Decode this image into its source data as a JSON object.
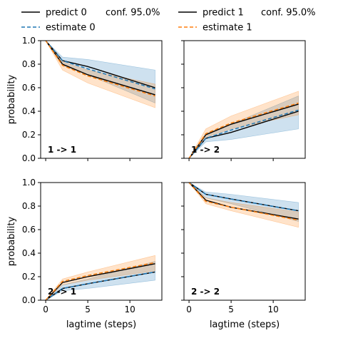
{
  "chart_data": {
    "type": "line",
    "layout": "2x2 grid",
    "legend": {
      "placement": "top",
      "left": [
        {
          "label": "predict 0",
          "style": "solid",
          "color": "#000000"
        },
        {
          "label": "estimate 0",
          "style": "dashed",
          "color": "#1f77b4"
        }
      ],
      "left_conf": "conf. 95.0%",
      "right": [
        {
          "label": "predict 1",
          "style": "solid",
          "color": "#000000"
        },
        {
          "label": "estimate 1",
          "style": "dashed",
          "color": "#ff7f0e"
        }
      ],
      "right_conf": "conf. 95.0%"
    },
    "xlabel": "lagtime (steps)",
    "ylabel": "probability",
    "xlim": [
      -0.6,
      13.8
    ],
    "ylim": [
      0.0,
      1.0
    ],
    "xticks": [
      "0",
      "5",
      "10"
    ],
    "xtick_values": [
      0,
      5,
      10
    ],
    "yticks": [
      "0.0",
      "0.2",
      "0.4",
      "0.6",
      "0.8",
      "1.0"
    ],
    "ytick_values": [
      0.0,
      0.2,
      0.4,
      0.6,
      0.8,
      1.0
    ],
    "x": [
      0,
      2,
      5,
      13
    ],
    "panels": [
      {
        "label": "1 -> 1",
        "series": [
          {
            "model": "0",
            "predict": [
              1.0,
              0.83,
              0.78,
              0.6
            ],
            "predict_band": [
              [
                1.0,
                1.0
              ],
              [
                0.79,
                0.86
              ],
              [
                0.71,
                0.84
              ],
              [
                0.47,
                0.75
              ]
            ],
            "estimate": [
              1.0,
              0.83,
              0.76,
              0.59
            ]
          },
          {
            "model": "1",
            "predict": [
              1.0,
              0.8,
              0.71,
              0.54
            ],
            "predict_band": [
              [
                1.0,
                1.0
              ],
              [
                0.75,
                0.82
              ],
              [
                0.64,
                0.75
              ],
              [
                0.43,
                0.63
              ]
            ],
            "estimate": [
              1.0,
              0.79,
              0.7,
              0.53
            ]
          }
        ]
      },
      {
        "label": "1 -> 2",
        "series": [
          {
            "model": "0",
            "predict": [
              0.0,
              0.17,
              0.22,
              0.4
            ],
            "predict_band": [
              [
                0.0,
                0.0
              ],
              [
                0.14,
                0.21
              ],
              [
                0.16,
                0.29
              ],
              [
                0.25,
                0.53
              ]
            ],
            "estimate": [
              0.0,
              0.17,
              0.24,
              0.41
            ]
          },
          {
            "model": "1",
            "predict": [
              0.0,
              0.2,
              0.29,
              0.46
            ],
            "predict_band": [
              [
                0.0,
                0.0
              ],
              [
                0.18,
                0.25
              ],
              [
                0.25,
                0.36
              ],
              [
                0.37,
                0.57
              ]
            ],
            "estimate": [
              0.0,
              0.21,
              0.3,
              0.47
            ]
          }
        ]
      },
      {
        "label": "2 -> 1",
        "series": [
          {
            "model": "0",
            "predict": [
              0.0,
              0.1,
              0.14,
              0.24
            ],
            "predict_band": [
              [
                0.0,
                0.0
              ],
              [
                0.08,
                0.13
              ],
              [
                0.1,
                0.18
              ],
              [
                0.17,
                0.33
              ]
            ],
            "estimate": [
              0.0,
              0.1,
              0.14,
              0.24
            ]
          },
          {
            "model": "1",
            "predict": [
              0.0,
              0.15,
              0.2,
              0.31
            ],
            "predict_band": [
              [
                0.0,
                0.0
              ],
              [
                0.13,
                0.18
              ],
              [
                0.17,
                0.24
              ],
              [
                0.25,
                0.38
              ]
            ],
            "estimate": [
              0.0,
              0.16,
              0.21,
              0.32
            ]
          }
        ]
      },
      {
        "label": "2 -> 2",
        "series": [
          {
            "model": "0",
            "predict": [
              1.0,
              0.9,
              0.86,
              0.76
            ],
            "predict_band": [
              [
                1.0,
                1.0
              ],
              [
                0.87,
                0.92
              ],
              [
                0.82,
                0.9
              ],
              [
                0.67,
                0.83
              ]
            ],
            "estimate": [
              1.0,
              0.9,
              0.86,
              0.76
            ]
          },
          {
            "model": "1",
            "predict": [
              1.0,
              0.85,
              0.79,
              0.69
            ],
            "predict_band": [
              [
                1.0,
                1.0
              ],
              [
                0.82,
                0.87
              ],
              [
                0.76,
                0.83
              ],
              [
                0.62,
                0.75
              ]
            ],
            "estimate": [
              1.0,
              0.84,
              0.79,
              0.68
            ]
          }
        ]
      }
    ],
    "colors": {
      "band_0": "#1f77b4",
      "band_1": "#ff7f0e",
      "predict": "#000000",
      "estimate_0": "#1f77b4",
      "estimate_1": "#ff7f0e"
    }
  }
}
